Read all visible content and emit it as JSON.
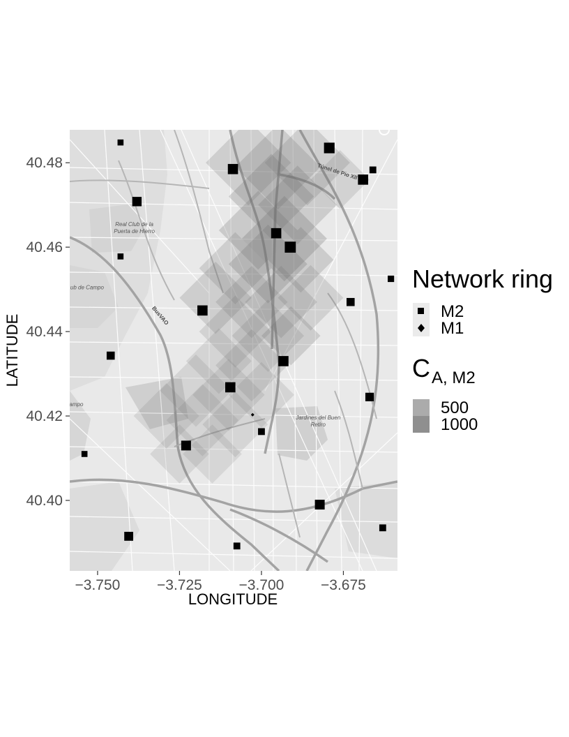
{
  "chart_data": {
    "type": "scatter",
    "title": "",
    "xlabel": "LONGITUDE",
    "ylabel": "LATITUDE",
    "xlim": [
      -3.7585,
      -3.6585
    ],
    "ylim": [
      40.3833,
      40.4878
    ],
    "x_ticks": [
      -3.75,
      -3.725,
      -3.7,
      -3.675
    ],
    "x_tick_labels": [
      "−3.750",
      "−3.725",
      "−3.700",
      "−3.675"
    ],
    "y_ticks": [
      40.4,
      40.42,
      40.44,
      40.46,
      40.48
    ],
    "y_tick_labels": [
      "40.40",
      "40.42",
      "40.44",
      "40.46",
      "40.48"
    ],
    "grid": false,
    "basemap": "grayscale street map",
    "map_labels": [
      {
        "text": "Real Club de la",
        "lon": -3.7388,
        "lat": 40.465,
        "style": "italic"
      },
      {
        "text": "Puerta de Hierro",
        "lon": -3.7388,
        "lat": 40.4633,
        "style": "italic"
      },
      {
        "text": "ub de Campo",
        "lon": -3.7532,
        "lat": 40.45,
        "style": "italic"
      },
      {
        "text": "ampo",
        "lon": -3.7565,
        "lat": 40.4223,
        "style": "italic"
      },
      {
        "text": "Jardines del Buen",
        "lon": -3.6827,
        "lat": 40.4192,
        "style": "italic"
      },
      {
        "text": "Retiro",
        "lon": -3.6827,
        "lat": 40.4175,
        "style": "italic"
      },
      {
        "text": "Túnel de Pio XII",
        "lon": -3.677,
        "lat": 40.4775,
        "style": "bold"
      },
      {
        "text": "BusVAO",
        "lon": -3.7313,
        "lat": 40.4435,
        "style": "bold"
      }
    ],
    "legend": {
      "placement": "right",
      "shape_title": "Network ring",
      "shape_entries": [
        {
          "label": "M2",
          "shape": "square"
        },
        {
          "label": "M1",
          "shape": "diamond"
        }
      ],
      "fill_title_main": "C",
      "fill_title_sub": "A, M2",
      "fill_entries": [
        {
          "label": "500",
          "color": "#ababab"
        },
        {
          "label": "1000",
          "color": "#8f8f8f"
        }
      ]
    },
    "density_tiles": [
      {
        "lon": -3.704,
        "lat": 40.48,
        "size": 0.013,
        "level": 0.6
      },
      {
        "lon": -3.695,
        "lat": 40.479,
        "size": 0.013,
        "level": 0.7
      },
      {
        "lon": -3.686,
        "lat": 40.48,
        "size": 0.013,
        "level": 0.6
      },
      {
        "lon": -3.697,
        "lat": 40.472,
        "size": 0.013,
        "level": 0.8
      },
      {
        "lon": -3.689,
        "lat": 40.47,
        "size": 0.012,
        "level": 0.7
      },
      {
        "lon": -3.701,
        "lat": 40.464,
        "size": 0.012,
        "level": 0.8
      },
      {
        "lon": -3.693,
        "lat": 40.462,
        "size": 0.013,
        "level": 1.0
      },
      {
        "lon": -3.698,
        "lat": 40.456,
        "size": 0.012,
        "level": 0.9
      },
      {
        "lon": -3.688,
        "lat": 40.457,
        "size": 0.01,
        "level": 0.7
      },
      {
        "lon": -3.708,
        "lat": 40.455,
        "size": 0.011,
        "level": 0.6
      },
      {
        "lon": -3.714,
        "lat": 40.448,
        "size": 0.011,
        "level": 0.6
      },
      {
        "lon": -3.703,
        "lat": 40.447,
        "size": 0.011,
        "level": 0.5
      },
      {
        "lon": -3.694,
        "lat": 40.447,
        "size": 0.011,
        "level": 0.6
      },
      {
        "lon": -3.685,
        "lat": 40.448,
        "size": 0.01,
        "level": 0.5
      },
      {
        "lon": -3.676,
        "lat": 40.476,
        "size": 0.009,
        "level": 0.4
      },
      {
        "lon": -3.708,
        "lat": 40.44,
        "size": 0.011,
        "level": 0.4
      },
      {
        "lon": -3.698,
        "lat": 40.439,
        "size": 0.011,
        "level": 0.4
      },
      {
        "lon": -3.691,
        "lat": 40.439,
        "size": 0.009,
        "level": 0.7
      },
      {
        "lon": -3.713,
        "lat": 40.433,
        "size": 0.01,
        "level": 0.3
      },
      {
        "lon": -3.703,
        "lat": 40.432,
        "size": 0.011,
        "level": 0.4
      },
      {
        "lon": -3.72,
        "lat": 40.426,
        "size": 0.011,
        "level": 0.3
      },
      {
        "lon": -3.71,
        "lat": 40.425,
        "size": 0.011,
        "level": 0.3
      },
      {
        "lon": -3.7,
        "lat": 40.425,
        "size": 0.01,
        "level": 0.3
      },
      {
        "lon": -3.729,
        "lat": 40.42,
        "size": 0.01,
        "level": 0.25
      },
      {
        "lon": -3.718,
        "lat": 40.419,
        "size": 0.011,
        "level": 0.25
      },
      {
        "lon": -3.708,
        "lat": 40.418,
        "size": 0.01,
        "level": 0.25
      },
      {
        "lon": -3.725,
        "lat": 40.411,
        "size": 0.009,
        "level": 0.25
      },
      {
        "lon": -3.715,
        "lat": 40.411,
        "size": 0.009,
        "level": 0.2
      }
    ],
    "series": [
      {
        "name": "M2",
        "shape": "square",
        "points": [
          {
            "lon": -3.743,
            "lat": 40.4848,
            "weight": 0.05
          },
          {
            "lon": -3.738,
            "lat": 40.4708,
            "weight": 0.45
          },
          {
            "lon": -3.743,
            "lat": 40.4578,
            "weight": 0.05
          },
          {
            "lon": -3.746,
            "lat": 40.4343,
            "weight": 0.3
          },
          {
            "lon": -3.754,
            "lat": 40.411,
            "weight": 0.05
          },
          {
            "lon": -3.7405,
            "lat": 40.3915,
            "weight": 0.4
          },
          {
            "lon": -3.718,
            "lat": 40.445,
            "weight": 0.55
          },
          {
            "lon": -3.723,
            "lat": 40.413,
            "weight": 0.5
          },
          {
            "lon": -3.7087,
            "lat": 40.4785,
            "weight": 0.55
          },
          {
            "lon": -3.7095,
            "lat": 40.4268,
            "weight": 0.55
          },
          {
            "lon": -3.7,
            "lat": 40.4163,
            "weight": 0.15
          },
          {
            "lon": -3.7075,
            "lat": 40.3892,
            "weight": 0.15
          },
          {
            "lon": -3.6955,
            "lat": 40.4633,
            "weight": 0.55
          },
          {
            "lon": -3.6912,
            "lat": 40.46,
            "weight": 0.65
          },
          {
            "lon": -3.6933,
            "lat": 40.433,
            "weight": 0.55
          },
          {
            "lon": -3.6793,
            "lat": 40.4835,
            "weight": 0.6
          },
          {
            "lon": -3.6728,
            "lat": 40.447,
            "weight": 0.3
          },
          {
            "lon": -3.6822,
            "lat": 40.399,
            "weight": 0.5
          },
          {
            "lon": -3.669,
            "lat": 40.476,
            "weight": 0.55
          },
          {
            "lon": -3.666,
            "lat": 40.4783,
            "weight": 0.15
          },
          {
            "lon": -3.667,
            "lat": 40.4245,
            "weight": 0.35
          },
          {
            "lon": -3.663,
            "lat": 40.3935,
            "weight": 0.15
          },
          {
            "lon": -3.6605,
            "lat": 40.4525,
            "weight": 0.1
          }
        ]
      },
      {
        "name": "M1",
        "shape": "diamond",
        "points": [
          {
            "lon": -3.7027,
            "lat": 40.4203,
            "weight": 0.0
          }
        ]
      }
    ]
  }
}
